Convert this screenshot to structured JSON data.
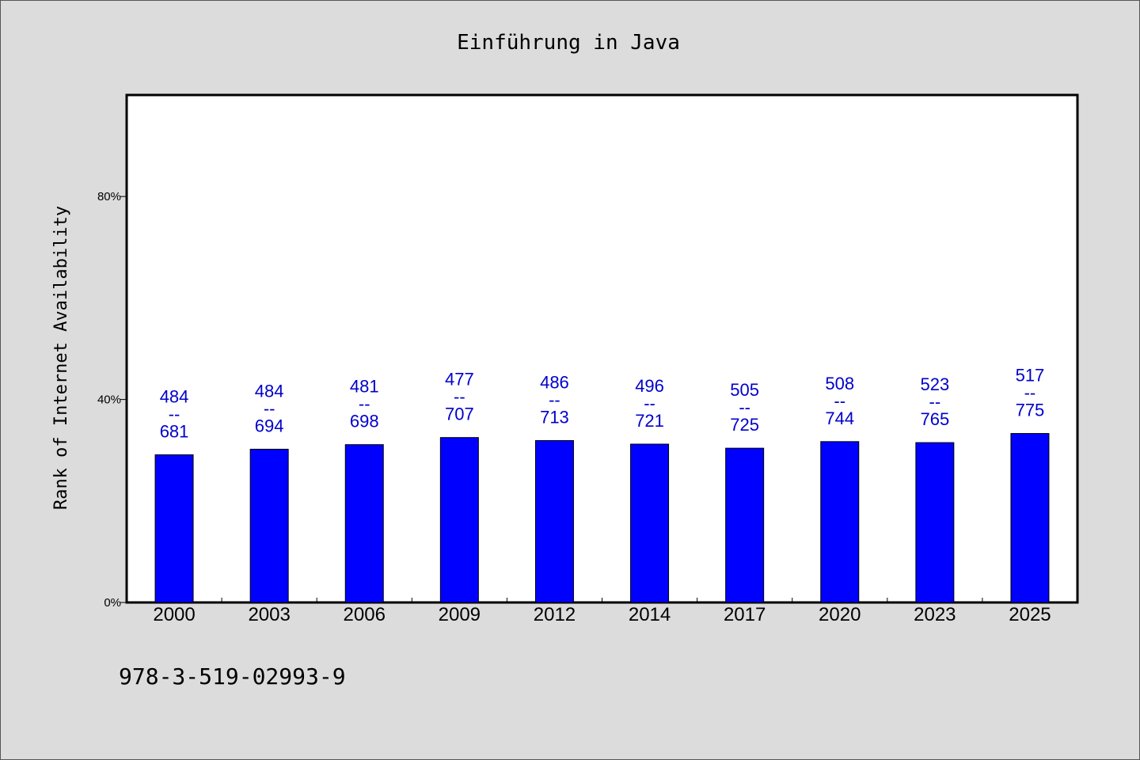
{
  "chart_data": {
    "type": "bar",
    "title": "Einführung in Java",
    "xlabel": "",
    "ylabel": "Rank of Internet Availability",
    "categories": [
      "2000",
      "2003",
      "2006",
      "2009",
      "2012",
      "2014",
      "2017",
      "2020",
      "2023",
      "2025"
    ],
    "values": [
      29.1,
      30.2,
      31.1,
      32.5,
      31.9,
      31.2,
      30.4,
      31.7,
      31.5,
      33.3
    ],
    "data_labels": [
      {
        "top": "484",
        "sep": "--",
        "bottom": "681"
      },
      {
        "top": "484",
        "sep": "--",
        "bottom": "694"
      },
      {
        "top": "481",
        "sep": "--",
        "bottom": "698"
      },
      {
        "top": "477",
        "sep": "--",
        "bottom": "707"
      },
      {
        "top": "486",
        "sep": "--",
        "bottom": "713"
      },
      {
        "top": "496",
        "sep": "--",
        "bottom": "721"
      },
      {
        "top": "505",
        "sep": "--",
        "bottom": "725"
      },
      {
        "top": "508",
        "sep": "--",
        "bottom": "744"
      },
      {
        "top": "523",
        "sep": "--",
        "bottom": "765"
      },
      {
        "top": "517",
        "sep": "--",
        "bottom": "775"
      }
    ],
    "yticks": [
      {
        "value": 0,
        "label": "0%"
      },
      {
        "value": 40,
        "label": "40%"
      },
      {
        "value": 80,
        "label": "80%"
      }
    ],
    "ylim": [
      0,
      100
    ],
    "grid": false,
    "bar_color": "#0000ff",
    "label_color": "#0000cc",
    "background_color": "#dcdcdc",
    "plot_background_color": "#ffffff"
  },
  "footer": {
    "isbn": "978-3-519-02993-9"
  }
}
